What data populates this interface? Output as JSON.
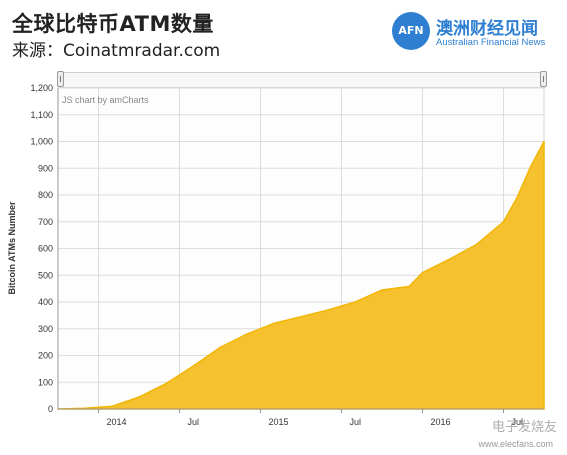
{
  "header": {
    "title": "全球比特币ATM数量",
    "source": "来源：Coinatmradar.com"
  },
  "logo": {
    "mark": "AFN",
    "name_cn": "澳洲财经见闻",
    "name_en": "Australian Financial News"
  },
  "credit": "JS chart by amCharts",
  "watermark": {
    "text": "电子发烧友",
    "url": "www.elecfans.com"
  },
  "colors": {
    "area_fill": "#f5c12e",
    "area_stroke": "#f2b705",
    "grid": "#dddddd",
    "logo_blue": "#2e7fd1"
  },
  "chart_data": {
    "type": "area",
    "title": "",
    "ylabel": "Bitcoin ATMs Number",
    "xlabel": "",
    "ylim": [
      0,
      1200
    ],
    "yticks": [
      0,
      100,
      200,
      300,
      400,
      500,
      600,
      700,
      800,
      900,
      1000,
      1100,
      1200
    ],
    "xlim": [
      "2013-10",
      "2016-10"
    ],
    "xticks": [
      {
        "label": "2014",
        "date": "2014-01"
      },
      {
        "label": "Jul",
        "date": "2014-07"
      },
      {
        "label": "2015",
        "date": "2015-01"
      },
      {
        "label": "Jul",
        "date": "2015-07"
      },
      {
        "label": "2016",
        "date": "2016-01"
      },
      {
        "label": "Jul",
        "date": "2016-07"
      }
    ],
    "grid": true,
    "series": [
      {
        "values": [
          {
            "x": "2013-10",
            "y": 0
          },
          {
            "x": "2013-12",
            "y": 3
          },
          {
            "x": "2014-02",
            "y": 10
          },
          {
            "x": "2014-04",
            "y": 45
          },
          {
            "x": "2014-06",
            "y": 95
          },
          {
            "x": "2014-08",
            "y": 160
          },
          {
            "x": "2014-10",
            "y": 230
          },
          {
            "x": "2014-12",
            "y": 280
          },
          {
            "x": "2015-02",
            "y": 320
          },
          {
            "x": "2015-04",
            "y": 345
          },
          {
            "x": "2015-06",
            "y": 370
          },
          {
            "x": "2015-08",
            "y": 400
          },
          {
            "x": "2015-10",
            "y": 445
          },
          {
            "x": "2015-12",
            "y": 458
          },
          {
            "x": "2016-01",
            "y": 510
          },
          {
            "x": "2016-03",
            "y": 560
          },
          {
            "x": "2016-05",
            "y": 615
          },
          {
            "x": "2016-07",
            "y": 700
          },
          {
            "x": "2016-08",
            "y": 790
          },
          {
            "x": "2016-09",
            "y": 905
          },
          {
            "x": "2016-10",
            "y": 1000
          }
        ]
      }
    ]
  }
}
